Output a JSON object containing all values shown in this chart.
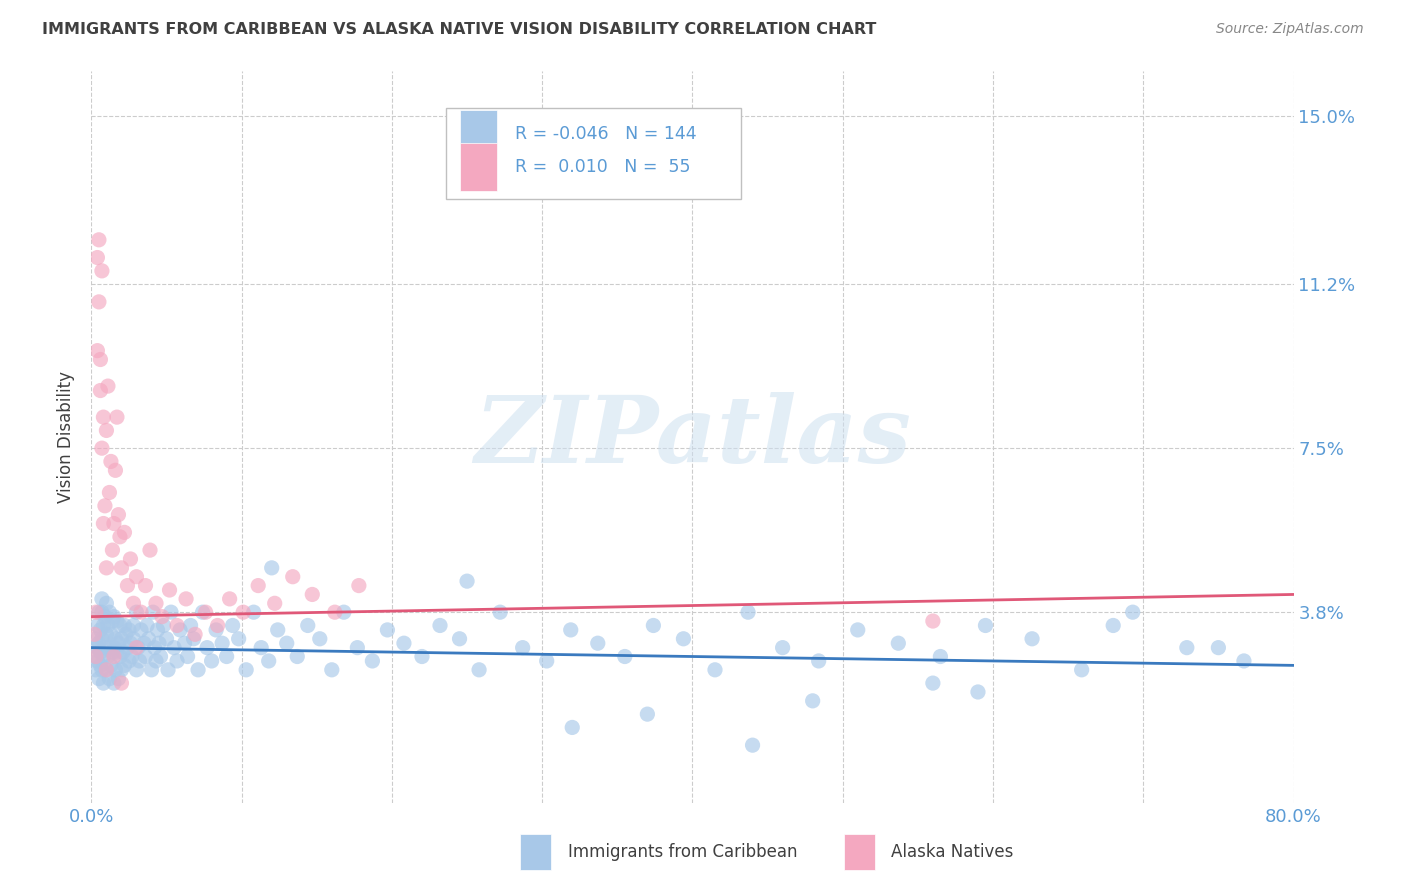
{
  "title": "IMMIGRANTS FROM CARIBBEAN VS ALASKA NATIVE VISION DISABILITY CORRELATION CHART",
  "source": "Source: ZipAtlas.com",
  "ylabel": "Vision Disability",
  "xlim": [
    0.0,
    0.8
  ],
  "ylim": [
    -0.005,
    0.16
  ],
  "yticks": [
    0.038,
    0.075,
    0.112,
    0.15
  ],
  "ytick_labels": [
    "3.8%",
    "7.5%",
    "11.2%",
    "15.0%"
  ],
  "xticks": [
    0.0,
    0.1,
    0.2,
    0.3,
    0.4,
    0.5,
    0.6,
    0.7,
    0.8
  ],
  "xtick_labels": [
    "0.0%",
    "",
    "",
    "",
    "",
    "",
    "",
    "",
    "80.0%"
  ],
  "blue_scatter_color": "#a8c8e8",
  "pink_scatter_color": "#f4a8c0",
  "blue_line_color": "#3a7abf",
  "pink_line_color": "#e05878",
  "watermark_text": "ZIPatlas",
  "background_color": "#ffffff",
  "grid_color": "#cccccc",
  "title_color": "#404040",
  "axis_label_color": "#404040",
  "tick_label_color": "#5b9bd5",
  "source_color": "#888888",
  "blue_trend_x": [
    0.0,
    0.8
  ],
  "blue_trend_y": [
    0.03,
    0.026
  ],
  "pink_trend_x": [
    0.0,
    0.8
  ],
  "pink_trend_y": [
    0.037,
    0.042
  ],
  "blue_dots_x": [
    0.002,
    0.003,
    0.003,
    0.004,
    0.004,
    0.004,
    0.005,
    0.005,
    0.005,
    0.006,
    0.006,
    0.006,
    0.007,
    0.007,
    0.007,
    0.007,
    0.008,
    0.008,
    0.008,
    0.009,
    0.009,
    0.01,
    0.01,
    0.01,
    0.011,
    0.011,
    0.012,
    0.012,
    0.012,
    0.013,
    0.013,
    0.014,
    0.014,
    0.015,
    0.015,
    0.015,
    0.016,
    0.016,
    0.017,
    0.017,
    0.018,
    0.018,
    0.019,
    0.019,
    0.02,
    0.02,
    0.021,
    0.022,
    0.022,
    0.023,
    0.024,
    0.025,
    0.025,
    0.026,
    0.027,
    0.028,
    0.028,
    0.03,
    0.03,
    0.031,
    0.032,
    0.033,
    0.035,
    0.036,
    0.037,
    0.038,
    0.04,
    0.041,
    0.042,
    0.043,
    0.044,
    0.045,
    0.046,
    0.048,
    0.05,
    0.051,
    0.053,
    0.055,
    0.057,
    0.059,
    0.062,
    0.064,
    0.066,
    0.068,
    0.071,
    0.074,
    0.077,
    0.08,
    0.083,
    0.087,
    0.09,
    0.094,
    0.098,
    0.103,
    0.108,
    0.113,
    0.118,
    0.124,
    0.13,
    0.137,
    0.144,
    0.152,
    0.16,
    0.168,
    0.177,
    0.187,
    0.197,
    0.208,
    0.22,
    0.232,
    0.245,
    0.258,
    0.272,
    0.287,
    0.303,
    0.319,
    0.337,
    0.355,
    0.374,
    0.394,
    0.415,
    0.437,
    0.46,
    0.484,
    0.51,
    0.537,
    0.565,
    0.595,
    0.626,
    0.659,
    0.693,
    0.729,
    0.767,
    0.12,
    0.25,
    0.37,
    0.48,
    0.59,
    0.68,
    0.75,
    0.32,
    0.44,
    0.56
  ],
  "blue_dots_y": [
    0.028,
    0.032,
    0.025,
    0.03,
    0.027,
    0.035,
    0.031,
    0.023,
    0.038,
    0.029,
    0.034,
    0.026,
    0.032,
    0.038,
    0.025,
    0.041,
    0.028,
    0.035,
    0.022,
    0.03,
    0.037,
    0.025,
    0.033,
    0.04,
    0.028,
    0.035,
    0.03,
    0.023,
    0.038,
    0.026,
    0.033,
    0.029,
    0.036,
    0.022,
    0.03,
    0.037,
    0.025,
    0.032,
    0.029,
    0.036,
    0.023,
    0.031,
    0.028,
    0.035,
    0.025,
    0.032,
    0.029,
    0.035,
    0.026,
    0.033,
    0.03,
    0.027,
    0.034,
    0.031,
    0.028,
    0.035,
    0.032,
    0.025,
    0.038,
    0.03,
    0.027,
    0.034,
    0.031,
    0.028,
    0.035,
    0.032,
    0.025,
    0.038,
    0.03,
    0.027,
    0.034,
    0.031,
    0.028,
    0.035,
    0.032,
    0.025,
    0.038,
    0.03,
    0.027,
    0.034,
    0.031,
    0.028,
    0.035,
    0.032,
    0.025,
    0.038,
    0.03,
    0.027,
    0.034,
    0.031,
    0.028,
    0.035,
    0.032,
    0.025,
    0.038,
    0.03,
    0.027,
    0.034,
    0.031,
    0.028,
    0.035,
    0.032,
    0.025,
    0.038,
    0.03,
    0.027,
    0.034,
    0.031,
    0.028,
    0.035,
    0.032,
    0.025,
    0.038,
    0.03,
    0.027,
    0.034,
    0.031,
    0.028,
    0.035,
    0.032,
    0.025,
    0.038,
    0.03,
    0.027,
    0.034,
    0.031,
    0.028,
    0.035,
    0.032,
    0.025,
    0.038,
    0.03,
    0.027,
    0.048,
    0.045,
    0.015,
    0.018,
    0.02,
    0.035,
    0.03,
    0.012,
    0.008,
    0.022
  ],
  "pink_dots_x": [
    0.002,
    0.003,
    0.003,
    0.004,
    0.004,
    0.005,
    0.005,
    0.006,
    0.006,
    0.007,
    0.007,
    0.008,
    0.008,
    0.009,
    0.01,
    0.01,
    0.011,
    0.012,
    0.013,
    0.014,
    0.015,
    0.016,
    0.017,
    0.018,
    0.019,
    0.02,
    0.022,
    0.024,
    0.026,
    0.028,
    0.03,
    0.033,
    0.036,
    0.039,
    0.043,
    0.047,
    0.052,
    0.057,
    0.063,
    0.069,
    0.076,
    0.084,
    0.092,
    0.101,
    0.111,
    0.122,
    0.134,
    0.147,
    0.162,
    0.178,
    0.56,
    0.01,
    0.015,
    0.02,
    0.03
  ],
  "pink_dots_y": [
    0.033,
    0.028,
    0.038,
    0.097,
    0.118,
    0.122,
    0.108,
    0.095,
    0.088,
    0.115,
    0.075,
    0.082,
    0.058,
    0.062,
    0.048,
    0.079,
    0.089,
    0.065,
    0.072,
    0.052,
    0.058,
    0.07,
    0.082,
    0.06,
    0.055,
    0.048,
    0.056,
    0.044,
    0.05,
    0.04,
    0.046,
    0.038,
    0.044,
    0.052,
    0.04,
    0.037,
    0.043,
    0.035,
    0.041,
    0.033,
    0.038,
    0.035,
    0.041,
    0.038,
    0.044,
    0.04,
    0.046,
    0.042,
    0.038,
    0.044,
    0.036,
    0.025,
    0.028,
    0.022,
    0.03
  ]
}
